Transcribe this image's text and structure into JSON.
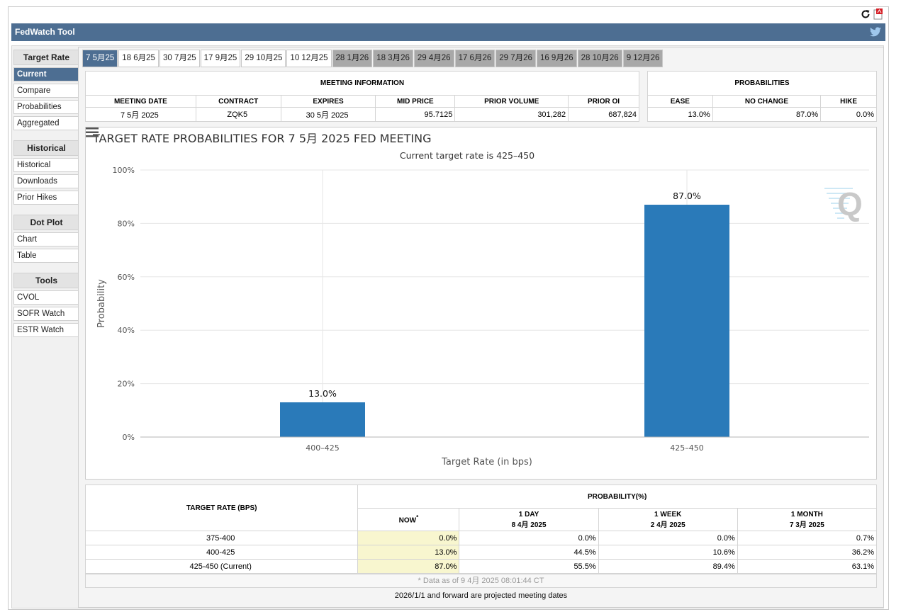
{
  "app": {
    "title": "FedWatch Tool"
  },
  "sidebar": {
    "sections": [
      {
        "heading": "Target Rate",
        "items": [
          "Current",
          "Compare",
          "Probabilities",
          "Aggregated"
        ]
      },
      {
        "heading": "Historical",
        "items": [
          "Historical",
          "Downloads",
          "Prior Hikes"
        ]
      },
      {
        "heading": "Dot Plot",
        "items": [
          "Chart",
          "Table"
        ]
      },
      {
        "heading": "Tools",
        "items": [
          "CVOL",
          "SOFR Watch",
          "ESTR Watch"
        ]
      }
    ],
    "active_item": "Current"
  },
  "tabs": [
    {
      "label": "7 5月25",
      "state": "active"
    },
    {
      "label": "18 6月25",
      "state": "normal"
    },
    {
      "label": "30 7月25",
      "state": "normal"
    },
    {
      "label": "17 9月25",
      "state": "normal"
    },
    {
      "label": "29 10月25",
      "state": "normal"
    },
    {
      "label": "10 12月25",
      "state": "normal"
    },
    {
      "label": "28 1月26",
      "state": "projected"
    },
    {
      "label": "18 3月26",
      "state": "projected"
    },
    {
      "label": "29 4月26",
      "state": "projected"
    },
    {
      "label": "17 6月26",
      "state": "projected"
    },
    {
      "label": "29 7月26",
      "state": "projected"
    },
    {
      "label": "16 9月26",
      "state": "projected"
    },
    {
      "label": "28 10月26",
      "state": "projected"
    },
    {
      "label": "9 12月26",
      "state": "projected"
    }
  ],
  "meeting_info": {
    "title": "MEETING INFORMATION",
    "headers": [
      "MEETING DATE",
      "CONTRACT",
      "EXPIRES",
      "MID PRICE",
      "PRIOR VOLUME",
      "PRIOR OI"
    ],
    "values": [
      "7 5月 2025",
      "ZQK5",
      "30 5月 2025",
      "95.7125",
      "301,282",
      "687,824"
    ]
  },
  "probabilities": {
    "title": "PROBABILITIES",
    "headers": [
      "EASE",
      "NO CHANGE",
      "HIKE"
    ],
    "values": [
      "13.0%",
      "87.0%",
      "0.0%"
    ]
  },
  "chart_data": {
    "type": "bar",
    "title": "TARGET RATE PROBABILITIES FOR 7 5月 2025 FED MEETING",
    "subtitle": "Current target rate is 425–450",
    "categories": [
      "400–425",
      "425–450"
    ],
    "values": [
      13.0,
      87.0
    ],
    "data_labels": [
      "13.0%",
      "87.0%"
    ],
    "xlabel": "Target Rate (in bps)",
    "ylabel": "Probability",
    "ylim": [
      0,
      100
    ],
    "yticks": [
      0,
      20,
      40,
      60,
      80,
      100
    ],
    "ytick_labels": [
      "0%",
      "20%",
      "40%",
      "60%",
      "80%",
      "100%"
    ],
    "grid": true,
    "bar_color": "#2a7ab9"
  },
  "bottom_table": {
    "col1_header": "TARGET RATE (BPS)",
    "group_header": "PROBABILITY(%)",
    "headers": [
      {
        "line1": "NOW",
        "line2": "",
        "star": "*"
      },
      {
        "line1": "1 DAY",
        "line2": "8 4月 2025",
        "star": ""
      },
      {
        "line1": "1 WEEK",
        "line2": "2 4月 2025",
        "star": ""
      },
      {
        "line1": "1 MONTH",
        "line2": "7 3月 2025",
        "star": ""
      }
    ],
    "rows": [
      {
        "rate": "375-400",
        "values": [
          "0.0%",
          "0.0%",
          "0.0%",
          "0.7%"
        ]
      },
      {
        "rate": "400-425",
        "values": [
          "13.0%",
          "44.5%",
          "10.6%",
          "36.2%"
        ]
      },
      {
        "rate": "425-450 (Current)",
        "values": [
          "87.0%",
          "55.5%",
          "89.4%",
          "63.1%"
        ]
      }
    ],
    "footnote": "* Data as of 9 4月 2025 08:01:44 CT"
  },
  "projected_note": "2026/1/1 and forward are projected meeting dates",
  "colors": {
    "accent": "#4d6e92",
    "projected_tab": "#a8a8a8",
    "now_highlight": "#f8f6cf"
  }
}
